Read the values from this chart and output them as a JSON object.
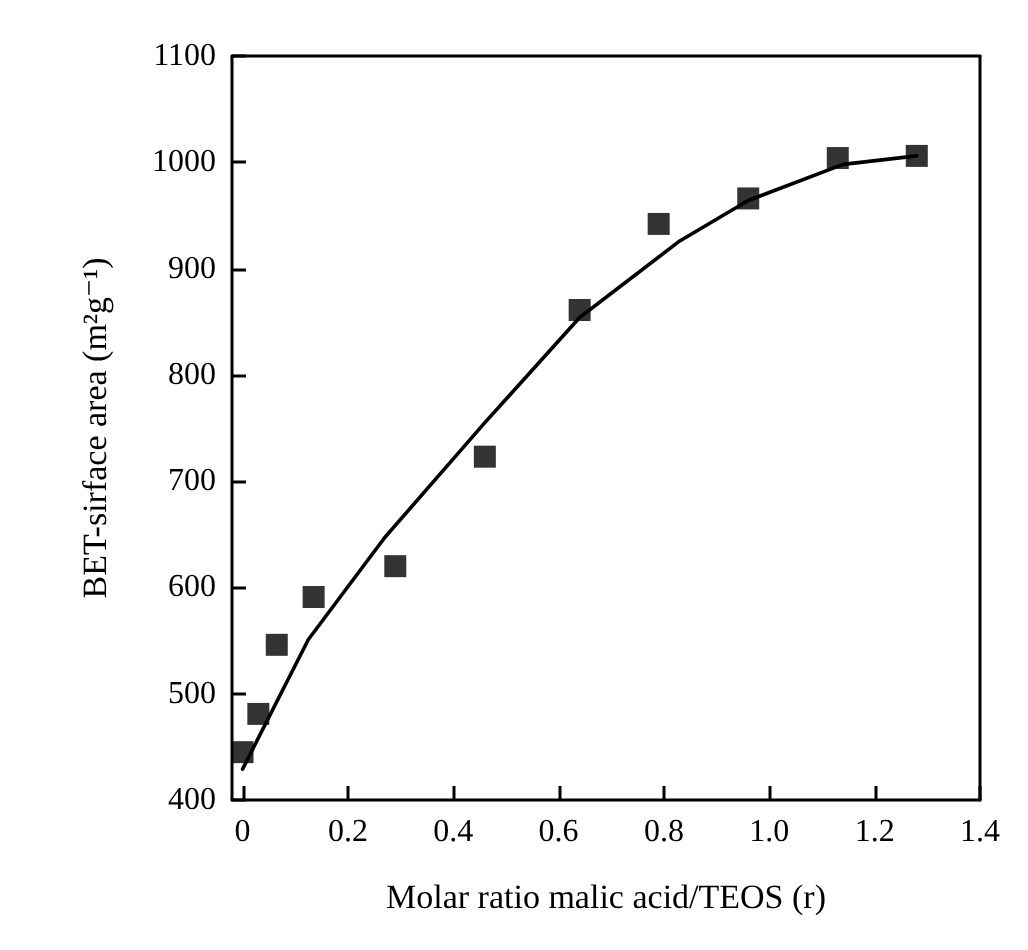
{
  "chart_data": {
    "type": "scatter",
    "xlabel": "Molar ratio malic acid/TEOS (r)",
    "ylabel": "BET-sirface area (m²g⁻¹)",
    "xlim": [
      -0.02,
      1.4
    ],
    "xticks": [
      0,
      0.2,
      0.4,
      0.6,
      0.8,
      {
        "value": 1.0,
        "label": "1.0"
      },
      1.2,
      1.4
    ],
    "ylim": [
      400,
      1100
    ],
    "yticks": [
      400,
      500,
      600,
      700,
      800,
      900,
      1000,
      1100
    ],
    "grid": false,
    "series": [
      {
        "color": "#000000",
        "marker": "square",
        "x": [
          0,
          0.03,
          0.065,
          0.135,
          0.29,
          0.46,
          0.64,
          0.79,
          0.96,
          1.13,
          1.28
        ],
        "values": [
          445,
          481,
          546,
          591,
          620,
          723,
          861,
          942,
          966,
          1004,
          1006
        ]
      },
      {
        "type": "line",
        "color": "#000000",
        "marker": "none",
        "line_style": "solid",
        "x": [
          0,
          0.125,
          0.27,
          0.46,
          0.64,
          0.83,
          0.96,
          1.14,
          1.28
        ],
        "values": [
          429,
          551,
          647,
          755,
          854,
          926,
          964,
          998,
          1006
        ]
      }
    ]
  }
}
